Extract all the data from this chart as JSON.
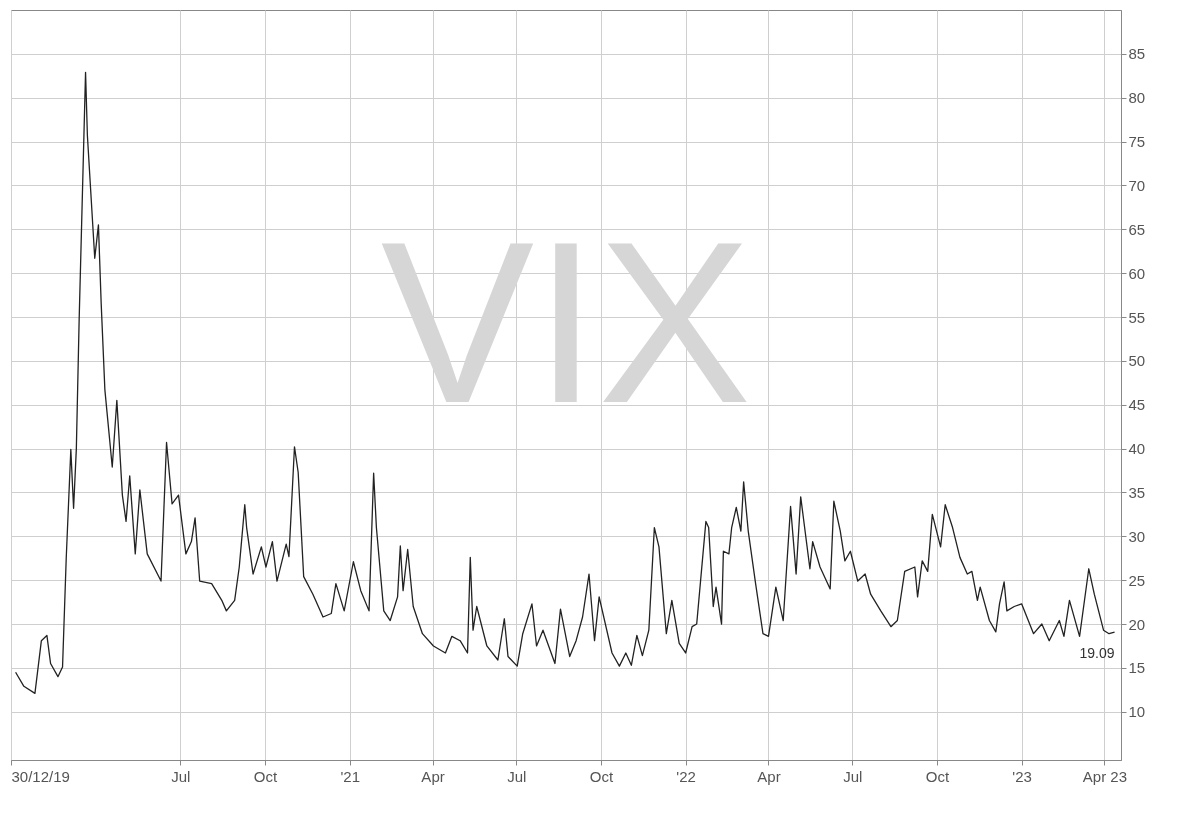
{
  "chart_data": {
    "type": "line",
    "title": "VIX",
    "x": [
      "2020-01-04",
      "2020-01-13",
      "2020-01-25",
      "2020-02-01",
      "2020-02-07",
      "2020-02-11",
      "2020-02-19",
      "2020-02-24",
      "2020-02-28",
      "2020-03-04",
      "2020-03-07",
      "2020-03-10",
      "2020-03-13",
      "2020-03-20",
      "2020-03-22",
      "2020-03-30",
      "2020-04-03",
      "2020-04-06",
      "2020-04-10",
      "2020-04-18",
      "2020-04-23",
      "2020-04-29",
      "2020-05-03",
      "2020-05-07",
      "2020-05-13",
      "2020-05-18",
      "2020-05-26",
      "2020-06-10",
      "2020-06-16",
      "2020-06-22",
      "2020-06-29",
      "2020-07-07",
      "2020-07-13",
      "2020-07-17",
      "2020-07-22",
      "2020-08-04",
      "2020-08-15",
      "2020-08-20",
      "2020-08-29",
      "2020-09-03",
      "2020-09-09",
      "2020-09-11",
      "2020-09-18",
      "2020-09-27",
      "2020-10-02",
      "2020-10-09",
      "2020-10-14",
      "2020-10-24",
      "2020-10-27",
      "2020-11-02",
      "2020-11-06",
      "2020-11-12",
      "2020-11-22",
      "2020-12-03",
      "2020-12-12",
      "2020-12-17",
      "2020-12-26",
      "2021-01-05",
      "2021-01-13",
      "2021-01-22",
      "2021-01-27",
      "2021-01-30",
      "2021-02-07",
      "2021-02-14",
      "2021-02-22",
      "2021-02-25",
      "2021-02-28",
      "2021-03-05",
      "2021-03-11",
      "2021-03-21",
      "2021-04-02",
      "2021-04-15",
      "2021-04-22",
      "2021-05-01",
      "2021-05-09",
      "2021-05-12",
      "2021-05-15",
      "2021-05-19",
      "2021-05-30",
      "2021-06-11",
      "2021-06-18",
      "2021-06-22",
      "2021-07-02",
      "2021-07-08",
      "2021-07-18",
      "2021-07-23",
      "2021-07-30",
      "2021-08-12",
      "2021-08-18",
      "2021-08-28",
      "2021-09-04",
      "2021-09-11",
      "2021-09-18",
      "2021-09-24",
      "2021-09-29",
      "2021-10-13",
      "2021-10-21",
      "2021-10-28",
      "2021-11-03",
      "2021-11-09",
      "2021-11-15",
      "2021-11-22",
      "2021-11-28",
      "2021-12-03",
      "2021-12-11",
      "2021-12-17",
      "2021-12-25",
      "2022-01-01",
      "2022-01-08",
      "2022-01-13",
      "2022-01-23",
      "2022-01-26",
      "2022-01-31",
      "2022-02-03",
      "2022-02-09",
      "2022-02-11",
      "2022-02-17",
      "2022-02-20",
      "2022-02-25",
      "2022-03-02",
      "2022-03-05",
      "2022-03-10",
      "2022-03-18",
      "2022-03-26",
      "2022-04-01",
      "2022-04-09",
      "2022-04-17",
      "2022-04-25",
      "2022-05-01",
      "2022-05-06",
      "2022-05-16",
      "2022-05-19",
      "2022-05-27",
      "2022-06-07",
      "2022-06-11",
      "2022-06-18",
      "2022-06-23",
      "2022-06-29",
      "2022-07-07",
      "2022-07-15",
      "2022-07-21",
      "2022-08-01",
      "2022-08-12",
      "2022-08-19",
      "2022-08-27",
      "2022-09-07",
      "2022-09-10",
      "2022-09-15",
      "2022-09-21",
      "2022-09-26",
      "2022-10-05",
      "2022-10-10",
      "2022-10-18",
      "2022-10-26",
      "2022-11-03",
      "2022-11-08",
      "2022-11-14",
      "2022-11-17",
      "2022-11-27",
      "2022-12-04",
      "2022-12-08",
      "2022-12-13",
      "2022-12-16",
      "2022-12-24",
      "2023-01-01",
      "2023-01-14",
      "2023-01-23",
      "2023-01-31",
      "2023-02-11",
      "2023-02-16",
      "2023-02-22",
      "2023-03-05",
      "2023-03-15",
      "2023-03-21",
      "2023-03-31",
      "2023-04-06",
      "2023-04-12"
    ],
    "series": [
      {
        "color": "#222222",
        "values": [
          14.5,
          12.9,
          12.1,
          18.1,
          18.7,
          15.5,
          14.0,
          15.1,
          27.5,
          39.9,
          33.2,
          40,
          54.5,
          82.9,
          75.7,
          61.7,
          65.5,
          56.5,
          46.7,
          37.9,
          45.5,
          34.7,
          31.7,
          36.9,
          28,
          35.3,
          28,
          24.9,
          40.7,
          33.7,
          34.7,
          28,
          29.4,
          32.1,
          24.9,
          24.6,
          22.7,
          21.5,
          22.7,
          26.5,
          33.6,
          31,
          25.7,
          28.8,
          26.5,
          29.4,
          24.9,
          29.1,
          27.7,
          40.2,
          37.3,
          25.4,
          23.4,
          20.8,
          21.2,
          24.6,
          21.5,
          27.1,
          23.8,
          21.5,
          37.2,
          31,
          21.5,
          20.4,
          23.1,
          28.9,
          23.8,
          28.5,
          22,
          18.9,
          17.5,
          16.7,
          18.6,
          18.1,
          16.7,
          27.6,
          19.3,
          22,
          17.5,
          15.9,
          20.6,
          16.3,
          15.2,
          18.9,
          22.3,
          17.5,
          19.3,
          15.5,
          21.7,
          16.3,
          18.1,
          20.8,
          25.7,
          18.1,
          23.1,
          16.7,
          15.2,
          16.7,
          15.3,
          18.7,
          16.4,
          19.3,
          31,
          28.8,
          18.9,
          22.7,
          17.8,
          16.7,
          19.7,
          20,
          31.7,
          31,
          22,
          24.2,
          20,
          28.3,
          28,
          31,
          33.3,
          30.6,
          36.2,
          30.6,
          24.6,
          18.9,
          18.6,
          24.2,
          20.4,
          33.4,
          25.7,
          34.5,
          26.3,
          29.4,
          26.5,
          24,
          34,
          30.6,
          27.2,
          28.3,
          24.9,
          25.7,
          23.4,
          21.5,
          19.7,
          20.4,
          26,
          26.5,
          23.1,
          27.2,
          26,
          32.5,
          28.8,
          33.6,
          31,
          27.6,
          25.7,
          26,
          22.7,
          24.2,
          20.4,
          19.1,
          22.3,
          24.8,
          21.5,
          22,
          22.3,
          18.9,
          20,
          18.1,
          20.4,
          18.6,
          22.7,
          18.6,
          26.3,
          23.4,
          19.3,
          18.9,
          19.09
        ]
      }
    ],
    "xlim": [
      "2019-12-30",
      "2023-04-19"
    ],
    "xticks": [
      {
        "value": "2019-12-30",
        "label": "30/12/19"
      },
      {
        "value": "2020-07-01",
        "label": "Jul"
      },
      {
        "value": "2020-10-01",
        "label": "Oct"
      },
      {
        "value": "2021-01-01",
        "label": "'21"
      },
      {
        "value": "2021-04-01",
        "label": "Apr"
      },
      {
        "value": "2021-07-01",
        "label": "Jul"
      },
      {
        "value": "2021-10-01",
        "label": "Oct"
      },
      {
        "value": "2022-01-01",
        "label": "'22"
      },
      {
        "value": "2022-04-01",
        "label": "Apr"
      },
      {
        "value": "2022-07-01",
        "label": "Jul"
      },
      {
        "value": "2022-10-01",
        "label": "Oct"
      },
      {
        "value": "2023-01-01",
        "label": "'23"
      },
      {
        "value": "2023-04-01",
        "label": "Apr 23"
      }
    ],
    "ylim": [
      4.5,
      90
    ],
    "yticks": [
      10,
      15,
      20,
      25,
      30,
      35,
      40,
      45,
      50,
      55,
      60,
      65,
      70,
      75,
      80,
      85
    ],
    "grid": true,
    "annotations": [
      {
        "text": "19.09",
        "x": "2023-04-12",
        "y": 19.09
      }
    ]
  }
}
